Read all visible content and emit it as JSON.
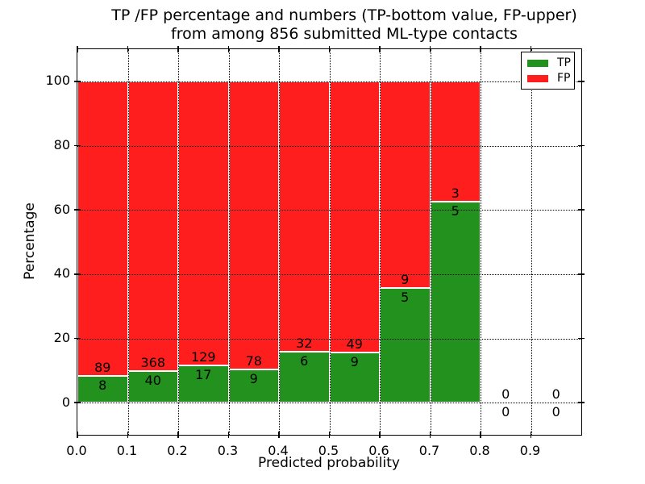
{
  "title": {
    "line1": "TP /FP percentage and numbers (TP-bottom value, FP-upper)",
    "line2": "from among 856 submitted ML-type contacts"
  },
  "axes": {
    "xlabel": "Predicted probability",
    "ylabel": "Percentage",
    "xlim": [
      0,
      1
    ],
    "ylim": [
      -10,
      110
    ],
    "x_tick_values": [
      0.0,
      0.1,
      0.2,
      0.3,
      0.4,
      0.5,
      0.6,
      0.7,
      0.8,
      0.9
    ],
    "x_tick_labels": [
      "0.0",
      "0.1",
      "0.2",
      "0.3",
      "0.4",
      "0.5",
      "0.6",
      "0.7",
      "0.8",
      "0.9"
    ],
    "y_tick_values": [
      0,
      20,
      40,
      60,
      80,
      100
    ],
    "y_tick_labels": [
      "0",
      "20",
      "40",
      "60",
      "80",
      "100"
    ],
    "grid_style": "dotted"
  },
  "legend": {
    "position": "upper right",
    "items": [
      {
        "label": "TP",
        "color": "#23911e"
      },
      {
        "label": "FP",
        "color": "#ff1e1e"
      }
    ]
  },
  "chart_data": {
    "type": "bar",
    "stacked": true,
    "unit": "percent of bin (bars normalized to 100%)",
    "total_submitted_contacts": 856,
    "categories": [
      "0.0-0.1",
      "0.1-0.2",
      "0.2-0.3",
      "0.3-0.4",
      "0.4-0.5",
      "0.5-0.6",
      "0.6-0.7",
      "0.7-0.8",
      "0.8-0.9",
      "0.9-1.0"
    ],
    "x_bins": [
      [
        0.0,
        0.1
      ],
      [
        0.1,
        0.2
      ],
      [
        0.2,
        0.3
      ],
      [
        0.3,
        0.4
      ],
      [
        0.4,
        0.5
      ],
      [
        0.5,
        0.6
      ],
      [
        0.6,
        0.7
      ],
      [
        0.7,
        0.8
      ],
      [
        0.8,
        0.9
      ],
      [
        0.9,
        1.0
      ]
    ],
    "series": [
      {
        "name": "TP",
        "position": "bottom",
        "color": "#23911e",
        "counts": [
          8,
          40,
          17,
          9,
          6,
          9,
          5,
          5,
          0,
          0
        ]
      },
      {
        "name": "FP",
        "position": "top",
        "color": "#ff1e1e",
        "counts": [
          89,
          368,
          129,
          78,
          32,
          49,
          9,
          3,
          0,
          0
        ]
      }
    ],
    "tp_percent_of_bin": [
      8.2,
      9.8,
      11.6,
      10.3,
      15.8,
      15.5,
      35.7,
      62.5,
      null,
      null
    ],
    "bar_top_percent": 100
  }
}
